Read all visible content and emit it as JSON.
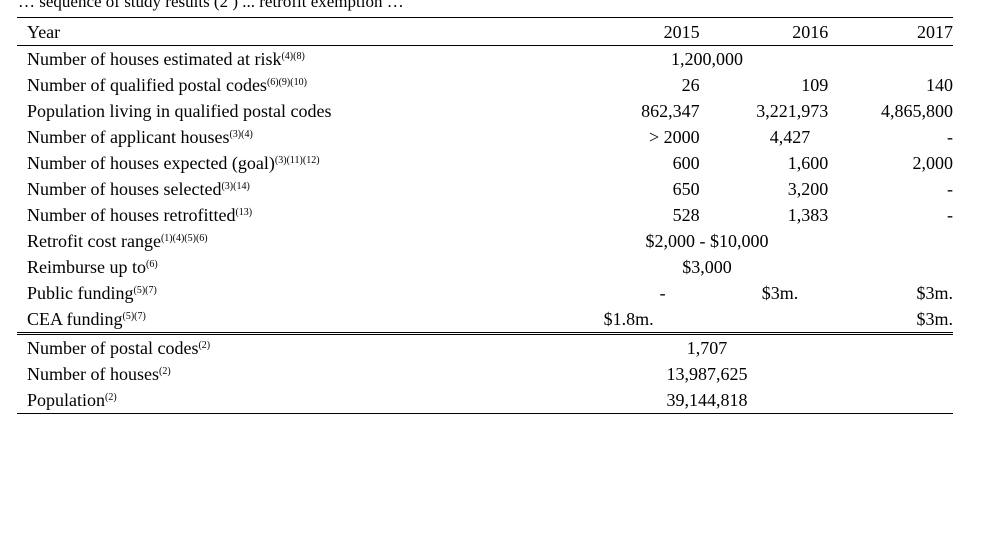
{
  "caption_fragment": "… sequence of study results (2 ) ... retrofit exemption …",
  "header": {
    "label": "Year",
    "y2015": "2015",
    "y2016": "2016",
    "y2017": "2017"
  },
  "rows": [
    {
      "label": "Number of houses estimated at risk",
      "sup": "(4)(8)",
      "merged": "1,200,000"
    },
    {
      "label": "Number of qualified postal codes",
      "sup": "(6)(9)(10)",
      "v2015": "26",
      "v2016": "109",
      "v2017": "140"
    },
    {
      "label": "Population living in qualified postal codes",
      "sup": "",
      "v2015": "862,347",
      "v2016": "3,221,973",
      "v2017": "4,865,800"
    },
    {
      "label": "Number of applicant houses",
      "sup": "(3)(4)",
      "v2015": "> 2000",
      "v2016": "4,427",
      "v2017": "-"
    },
    {
      "label": "Number of houses expected (goal)",
      "sup": "(3)(11)(12)",
      "v2015": "600",
      "v2016": "1,600",
      "v2017": "2,000"
    },
    {
      "label": "Number of houses selected",
      "sup": "(3)(14)",
      "v2015": "650",
      "v2016": "3,200",
      "v2017": "-"
    },
    {
      "label": "Number of houses retrofitted",
      "sup": "(13)",
      "v2015": "528",
      "v2016": "1,383",
      "v2017": "-"
    },
    {
      "label": "Retrofit cost range",
      "sup": "(1)(4)(5)(6)",
      "merged": "$2,000 - $10,000"
    },
    {
      "label": "Reimburse up to",
      "sup": "(6)",
      "merged": "$3,000"
    },
    {
      "label": "Public funding",
      "sup": "(5)(7)",
      "v2015": "-",
      "v2016": "$3m.",
      "v2017": "$3m."
    },
    {
      "label": "CEA funding",
      "sup": "(5)(7)",
      "merged_1516": "$1.8m.",
      "v2017": "$3m."
    }
  ],
  "totals": [
    {
      "label": "Number of postal codes",
      "sup": "(2)",
      "merged": "1,707"
    },
    {
      "label": "Number of houses",
      "sup": "(2)",
      "merged": "13,987,625"
    },
    {
      "label": "Population",
      "sup": "(2)",
      "merged": "39,144,818"
    }
  ]
}
